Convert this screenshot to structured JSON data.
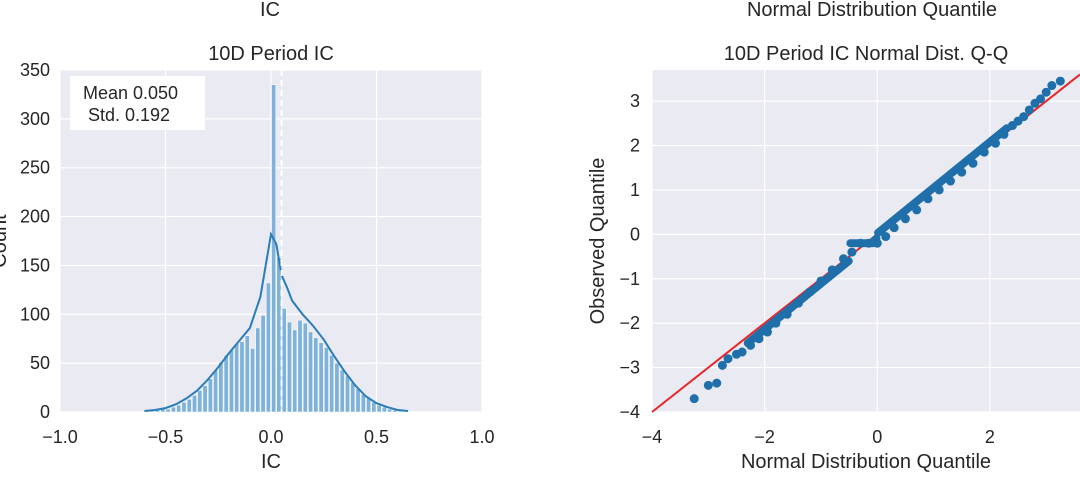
{
  "chart_data": [
    {
      "type": "bar",
      "clipped_top_text": "IC",
      "title": "10D Period IC",
      "xlabel": "IC",
      "ylabel": "Count",
      "xlim": [
        -1.0,
        1.0
      ],
      "ylim": [
        0,
        350
      ],
      "xticks": [
        -1.0,
        -0.5,
        0.0,
        0.5,
        1.0
      ],
      "xtick_labels": [
        "−1.0",
        "−0.5",
        "0.0",
        "0.5",
        "1.0"
      ],
      "yticks": [
        0,
        50,
        100,
        150,
        200,
        250,
        300,
        350
      ],
      "ytick_labels": [
        "0",
        "50",
        "100",
        "150",
        "200",
        "250",
        "300",
        "350"
      ],
      "annotation_lines": [
        "Mean 0.050",
        " Std. 0.192"
      ],
      "mean_line_x": 0.05,
      "grid": true,
      "colors": {
        "bar": "#7fb2d9",
        "kde": "#2a7db8",
        "background": "#eaeaf2",
        "mean_line": "#ffffff"
      },
      "bins": {
        "width": 0.025,
        "left_edges": [
          -0.6,
          -0.575,
          -0.55,
          -0.525,
          -0.5,
          -0.475,
          -0.45,
          -0.425,
          -0.4,
          -0.375,
          -0.35,
          -0.325,
          -0.3,
          -0.275,
          -0.25,
          -0.225,
          -0.2,
          -0.175,
          -0.15,
          -0.125,
          -0.1,
          -0.075,
          -0.05,
          -0.025,
          0.0,
          0.025,
          0.05,
          0.075,
          0.1,
          0.125,
          0.15,
          0.175,
          0.2,
          0.225,
          0.25,
          0.275,
          0.3,
          0.325,
          0.35,
          0.375,
          0.4,
          0.425,
          0.45,
          0.475,
          0.5,
          0.525,
          0.55,
          0.575,
          0.6
        ],
        "counts": [
          1,
          1,
          2,
          3,
          3,
          5,
          7,
          10,
          13,
          17,
          22,
          27,
          34,
          43,
          51,
          58,
          64,
          70,
          72,
          78,
          65,
          86,
          99,
          132,
          335,
          158,
          106,
          92,
          84,
          94,
          91,
          82,
          76,
          71,
          66,
          58,
          50,
          43,
          37,
          30,
          24,
          18,
          14,
          10,
          7,
          5,
          3,
          2,
          1
        ]
      },
      "kde": {
        "x": [
          -0.6,
          -0.55,
          -0.5,
          -0.45,
          -0.4,
          -0.35,
          -0.3,
          -0.25,
          -0.2,
          -0.15,
          -0.1,
          -0.05,
          -0.025,
          0.0,
          0.025,
          0.05,
          0.075,
          0.1,
          0.15,
          0.2,
          0.25,
          0.3,
          0.35,
          0.4,
          0.45,
          0.5,
          0.55,
          0.6,
          0.65
        ],
        "y": [
          1,
          2,
          4,
          8,
          14,
          22,
          33,
          46,
          60,
          73,
          86,
          118,
          150,
          182,
          172,
          140,
          128,
          114,
          100,
          88,
          74,
          57,
          41,
          27,
          16,
          9,
          5,
          2,
          1
        ]
      }
    },
    {
      "type": "scatter",
      "clipped_top_text": "Normal Distribution Quantile",
      "title": "10D Period IC Normal Dist. Q-Q",
      "xlabel": "Normal Distribution Quantile",
      "ylabel": "Observed Quantile",
      "xlim": [
        -4,
        3.6
      ],
      "ylim": [
        -4,
        3.7
      ],
      "xticks": [
        -4,
        -2,
        0,
        2
      ],
      "xtick_labels": [
        "−4",
        "−2",
        "0",
        "2"
      ],
      "yticks": [
        -4,
        -3,
        -2,
        -1,
        0,
        1,
        2,
        3
      ],
      "ytick_labels": [
        "−4",
        "−3",
        "−2",
        "−1",
        "0",
        "1",
        "2",
        "3"
      ],
      "grid": true,
      "colors": {
        "points": "#1f6faa",
        "reference_line": "#e8272a",
        "background": "#eaeaf2"
      },
      "reference_line": {
        "x": [
          -4,
          3.6
        ],
        "y": [
          -4,
          3.6
        ]
      },
      "points": {
        "x": [
          -3.25,
          -3.0,
          -2.85,
          -2.75,
          -2.65,
          -2.5,
          -2.4,
          -2.25,
          -2.1,
          -1.95,
          -1.8,
          -1.6,
          -1.4,
          -1.2,
          -1.0,
          -0.8,
          -0.6,
          -0.45,
          -0.3,
          -0.15,
          0.0,
          0.15,
          0.3,
          0.5,
          0.7,
          0.9,
          1.1,
          1.3,
          1.5,
          1.7,
          1.9,
          2.1,
          2.25,
          2.4,
          2.5,
          2.6,
          2.7,
          2.8,
          2.9,
          3.0,
          3.1,
          3.25
        ],
        "y": [
          -3.7,
          -3.4,
          -3.35,
          -2.95,
          -2.8,
          -2.7,
          -2.65,
          -2.5,
          -2.35,
          -2.2,
          -2.0,
          -1.8,
          -1.55,
          -1.3,
          -1.05,
          -0.8,
          -0.55,
          -0.4,
          -0.2,
          -0.2,
          -0.2,
          -0.05,
          0.15,
          0.35,
          0.55,
          0.8,
          1.0,
          1.2,
          1.4,
          1.6,
          1.85,
          2.05,
          2.25,
          2.45,
          2.55,
          2.65,
          2.8,
          2.95,
          3.05,
          3.2,
          3.35,
          3.45
        ]
      }
    }
  ]
}
